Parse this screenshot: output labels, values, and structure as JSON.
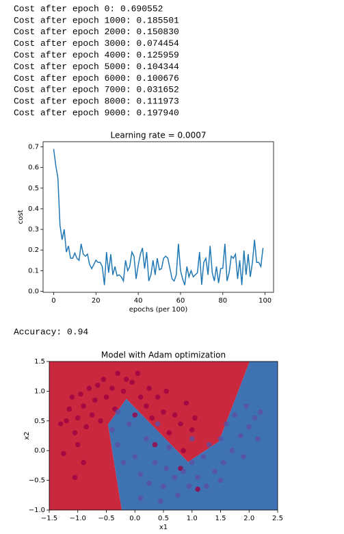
{
  "output_lines": [
    "Cost after epoch 0: 0.690552",
    "Cost after epoch 1000: 0.185501",
    "Cost after epoch 2000: 0.150830",
    "Cost after epoch 3000: 0.074454",
    "Cost after epoch 4000: 0.125959",
    "Cost after epoch 5000: 0.104344",
    "Cost after epoch 6000: 0.100676",
    "Cost after epoch 7000: 0.031652",
    "Cost after epoch 8000: 0.111973",
    "Cost after epoch 9000: 0.197940"
  ],
  "accuracy_line": "Accuracy: 0.94",
  "chart_data": [
    {
      "type": "line",
      "title": "Learning rate = 0.0007",
      "xlabel": "epochs (per 100)",
      "ylabel": "cost",
      "x": [
        0,
        1,
        2,
        3,
        4,
        5,
        6,
        7,
        8,
        9,
        10,
        11,
        12,
        13,
        14,
        15,
        16,
        17,
        18,
        19,
        20,
        21,
        22,
        23,
        24,
        25,
        26,
        27,
        28,
        29,
        30,
        31,
        32,
        33,
        34,
        35,
        36,
        37,
        38,
        39,
        40,
        41,
        42,
        43,
        44,
        45,
        46,
        47,
        48,
        49,
        50,
        51,
        52,
        53,
        54,
        55,
        56,
        57,
        58,
        59,
        60,
        61,
        62,
        63,
        64,
        65,
        66,
        67,
        68,
        69,
        70,
        71,
        72,
        73,
        74,
        75,
        76,
        77,
        78,
        79,
        80,
        81,
        82,
        83,
        84,
        85,
        86,
        87,
        88,
        89,
        90,
        91,
        92,
        93,
        94,
        95,
        96,
        97,
        98,
        99
      ],
      "series": [
        {
          "color": "#1f77b4",
          "values": [
            0.69,
            0.61,
            0.55,
            0.32,
            0.25,
            0.3,
            0.19,
            0.22,
            0.16,
            0.16,
            0.1855,
            0.16,
            0.15,
            0.23,
            0.18,
            0.17,
            0.18,
            0.13,
            0.11,
            0.13,
            0.1508,
            0.14,
            0.14,
            0.12,
            0.03,
            0.19,
            0.09,
            0.18,
            0.08,
            0.12,
            0.0745,
            0.08,
            0.07,
            0.05,
            0.15,
            0.1,
            0.12,
            0.19,
            0.17,
            0.06,
            0.126,
            0.18,
            0.21,
            0.11,
            0.19,
            0.05,
            0.08,
            0.15,
            0.08,
            0.16,
            0.1043,
            0.11,
            0.16,
            0.17,
            0.16,
            0.11,
            0.06,
            0.05,
            0.08,
            0.23,
            0.1007,
            0.06,
            0.03,
            0.12,
            0.07,
            0.1,
            0.07,
            0.08,
            0.09,
            0.19,
            0.0317,
            0.14,
            0.16,
            0.08,
            0.22,
            0.09,
            0.05,
            0.12,
            0.04,
            0.11,
            0.112,
            0.23,
            0.05,
            0.09,
            0.17,
            0.16,
            0.18,
            0.06,
            0.15,
            0.03,
            0.1979,
            0.08,
            0.18,
            0.07,
            0.14,
            0.25,
            0.14,
            0.14,
            0.12,
            0.21
          ]
        }
      ],
      "xlim": [
        -5,
        104
      ],
      "ylim": [
        -0.005,
        0.725
      ],
      "xticks": [
        0,
        20,
        40,
        60,
        80,
        100
      ],
      "yticks": [
        {
          "value": 0,
          "label": "0.0"
        },
        0.1,
        0.2,
        0.3,
        0.4,
        0.5,
        0.6,
        0.7
      ]
    },
    {
      "type": "scatter",
      "title": "Model with Adam optimization",
      "xlabel": "x1",
      "ylabel": "x2",
      "regions": [
        {
          "color": "#c9283f",
          "x": [
            -1.5,
            -0.23,
            -0.47,
            -0.15,
            0.93,
            1.47,
            2.01,
            -1.5
          ],
          "y": [
            -1,
            -1,
            0.44,
            0.87,
            -0.19,
            0.15,
            1.5,
            1.5
          ]
        },
        {
          "color": "#3e72b3",
          "x": [
            -0.23,
            -0.47,
            -0.15,
            0.93,
            1.47,
            2.01,
            2.5,
            2.5
          ],
          "y": [
            -1,
            0.44,
            0.87,
            -0.19,
            0.15,
            1.5,
            1.5,
            -1
          ]
        }
      ],
      "series": [
        {
          "color": "#9e0142",
          "x": [
            -1.3,
            -1.25,
            -1.2,
            -1.15,
            -1.1,
            -1.05,
            -1.0,
            -1.0,
            -0.95,
            -0.9,
            -0.9,
            -0.85,
            -0.8,
            -0.75,
            -0.7,
            -0.65,
            -0.6,
            -0.55,
            -0.5,
            -0.4,
            -0.35,
            -0.3,
            -0.2,
            -0.15,
            -0.05,
            0.0,
            0.05,
            0.1,
            0.2,
            0.25,
            0.3,
            0.4,
            0.5,
            0.55,
            0.6,
            0.7,
            0.8,
            0.85,
            0.9,
            1.0,
            1.05,
            0.8,
            1.1,
            -1.05,
            0.35
          ],
          "values": [
            0.45,
            -0.05,
            0.5,
            0.7,
            0.9,
            0.3,
            0.55,
            0.1,
            0.95,
            0.75,
            -0.2,
            0.4,
            1.05,
            0.6,
            0.85,
            1.1,
            0.5,
            1.2,
            0.9,
            1.05,
            0.7,
            1.3,
            1.0,
            1.2,
            1.15,
            0.6,
            1.3,
            0.9,
            0.75,
            1.05,
            0.55,
            0.9,
            0.65,
            1.0,
            0.3,
            0.6,
            0.45,
            0.0,
            0.8,
            0.35,
            0.55,
            -0.3,
            -0.65,
            -0.45,
            0.1
          ]
        },
        {
          "color": "#5e4fa2",
          "x": [
            -0.4,
            -0.3,
            -0.2,
            -0.1,
            0.0,
            0.1,
            0.2,
            0.25,
            0.35,
            0.4,
            0.5,
            0.55,
            0.6,
            0.7,
            0.75,
            0.85,
            0.95,
            1.0,
            1.1,
            1.2,
            1.25,
            1.3,
            1.4,
            1.5,
            1.55,
            1.6,
            1.7,
            1.75,
            1.85,
            1.9,
            1.95,
            2.0,
            2.1,
            2.15,
            2.2,
            -0.3,
            0.1,
            1.5,
            0.45,
            1.0
          ],
          "values": [
            0.35,
            0.1,
            -0.2,
            0.45,
            -0.1,
            -0.4,
            0.2,
            -0.55,
            -0.2,
            0.45,
            -0.6,
            -0.3,
            0.05,
            -0.45,
            -0.75,
            -0.35,
            -0.6,
            -0.2,
            -0.45,
            -0.1,
            -0.6,
            0.1,
            -0.35,
            0.2,
            -0.2,
            0.45,
            0.0,
            0.6,
            0.25,
            -0.1,
            0.75,
            0.4,
            0.55,
            0.2,
            0.65,
            0.65,
            -0.8,
            -0.5,
            -0.85,
            0.2
          ]
        }
      ],
      "xlim": [
        -1.5,
        2.5
      ],
      "ylim": [
        -1,
        1.5
      ],
      "xticks": [
        {
          "value": -1.5,
          "label": "−1.5"
        },
        {
          "value": -1,
          "label": "−1.0"
        },
        {
          "value": -0.5,
          "label": "−0.5"
        },
        {
          "value": 0,
          "label": "0.0"
        },
        0.5,
        {
          "value": 1,
          "label": "1.0"
        },
        1.5,
        {
          "value": 2,
          "label": "2.0"
        },
        2.5
      ],
      "yticks": [
        {
          "value": -1,
          "label": "−1.0"
        },
        {
          "value": -0.5,
          "label": "−0.5"
        },
        {
          "value": 0,
          "label": "0.0"
        },
        0.5,
        {
          "value": 1,
          "label": "1.0"
        },
        1.5
      ]
    }
  ]
}
